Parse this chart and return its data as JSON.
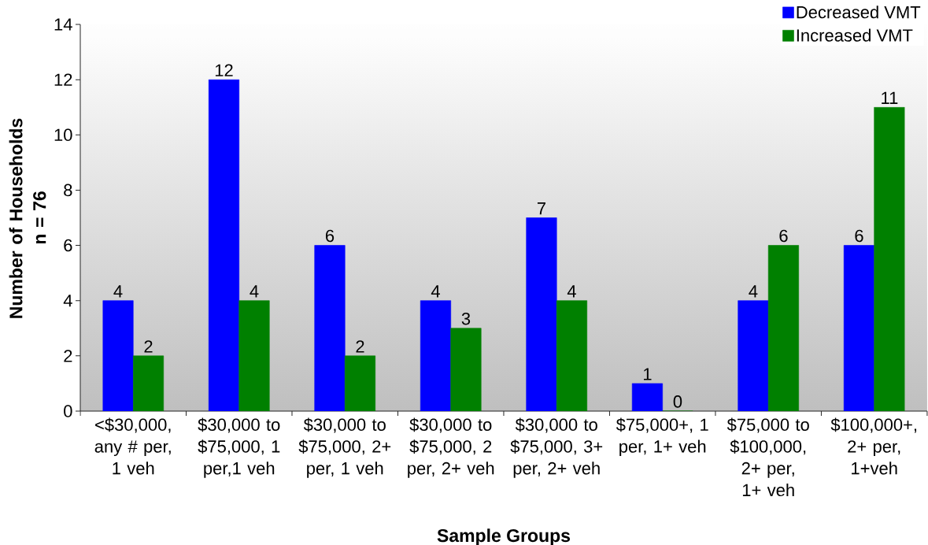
{
  "chart_data": {
    "type": "bar",
    "xlabel": "Sample Groups",
    "ylabel": "Number of Households n = 76",
    "categories": [
      "<$30,000, any # per, 1 veh",
      "$30,000 to $75,000, 1 per,1 veh",
      "$30,000 to $75,000, 2+ per, 1 veh",
      "$30,000 to $75,000, 2 per, 2+ veh",
      "$30,000 to $75,000, 3+ per, 2+ veh",
      "$75,000+, 1 per, 1+ veh",
      "$75,000 to $100,000, 2+ per, 1+ veh",
      "$100,000+, 2+ per, 1+veh"
    ],
    "series": [
      {
        "name": "Decreased VMT",
        "color": "#0000ff",
        "values": [
          4,
          12,
          6,
          4,
          7,
          1,
          4,
          6
        ]
      },
      {
        "name": "Increased VMT",
        "color": "#008000",
        "values": [
          2,
          4,
          2,
          3,
          4,
          0,
          6,
          11
        ]
      }
    ],
    "ylim": [
      0,
      14
    ],
    "yticks": [
      0,
      2,
      4,
      6,
      8,
      10,
      12,
      14
    ],
    "data_labels": true,
    "legend": "top right"
  }
}
